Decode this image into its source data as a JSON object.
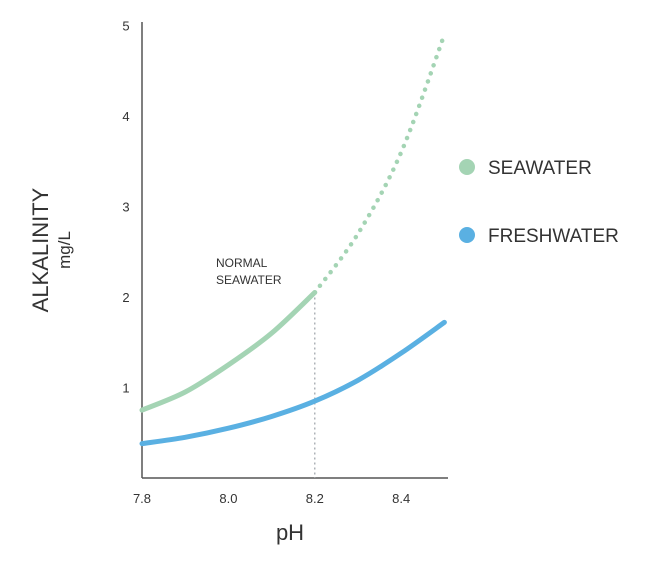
{
  "chart_data": {
    "type": "line",
    "xlabel": "pH",
    "ylabel": "ALKALINITY",
    "ylabel_unit": "mg/L",
    "xlim": [
      7.8,
      8.5
    ],
    "ylim": [
      0,
      5
    ],
    "x_ticks": [
      "7.8",
      "8.0",
      "8.2",
      "8.4"
    ],
    "y_ticks": [
      "1",
      "2",
      "3",
      "4",
      "5"
    ],
    "grid": false,
    "legend_position": "right",
    "annotation": {
      "lines": [
        "NORMAL",
        "SEAWATER"
      ],
      "x": 8.2,
      "y": 2.05
    },
    "series": [
      {
        "name": "SEAWATER",
        "color": "#a4d4b4",
        "points": [
          {
            "x": 7.8,
            "y": 0.75
          },
          {
            "x": 7.9,
            "y": 0.95
          },
          {
            "x": 8.0,
            "y": 1.25
          },
          {
            "x": 8.1,
            "y": 1.6
          },
          {
            "x": 8.2,
            "y": 2.05
          },
          {
            "x": 8.3,
            "y": 2.7
          },
          {
            "x": 8.4,
            "y": 3.6
          },
          {
            "x": 8.5,
            "y": 4.9
          }
        ],
        "dotted_from_x": 8.2
      },
      {
        "name": "FRESHWATER",
        "color": "#5ab0e2",
        "points": [
          {
            "x": 7.8,
            "y": 0.38
          },
          {
            "x": 7.9,
            "y": 0.45
          },
          {
            "x": 8.0,
            "y": 0.55
          },
          {
            "x": 8.1,
            "y": 0.68
          },
          {
            "x": 8.2,
            "y": 0.85
          },
          {
            "x": 8.3,
            "y": 1.08
          },
          {
            "x": 8.4,
            "y": 1.38
          },
          {
            "x": 8.5,
            "y": 1.72
          }
        ]
      }
    ]
  }
}
